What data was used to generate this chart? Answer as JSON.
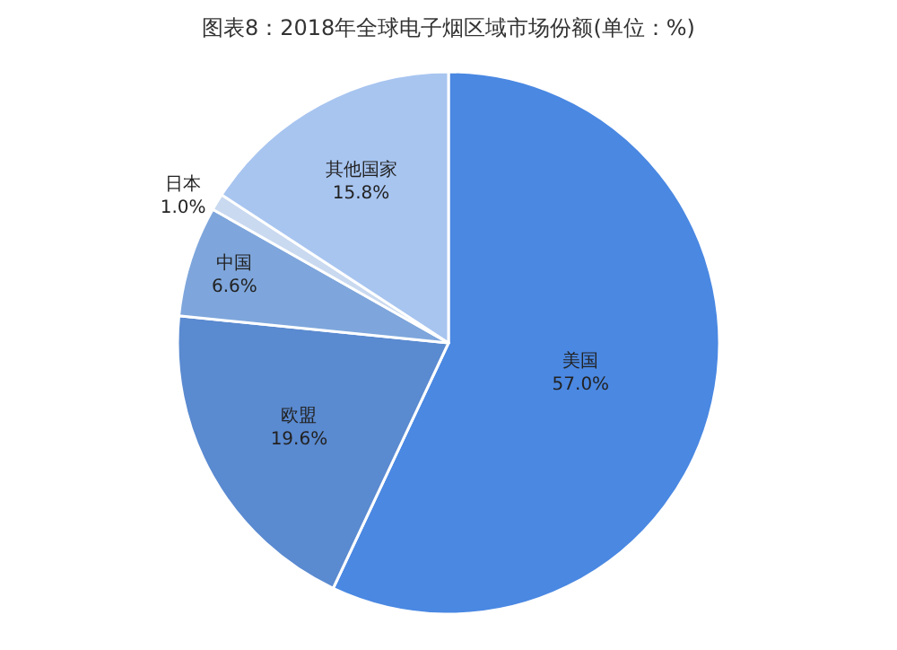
{
  "chart_data": {
    "type": "pie",
    "title": "图表8：2018年全球电子烟区域市场份额(单位：%)",
    "categories": [
      "美国",
      "欧盟",
      "中国",
      "日本",
      "其他国家"
    ],
    "values": [
      57.0,
      19.6,
      6.6,
      1.0,
      15.8
    ],
    "value_labels": [
      "57.0%",
      "19.6%",
      "6.6%",
      "1.0%",
      "15.8%"
    ],
    "colors": [
      "#4a88e2",
      "#5a8ad0",
      "#7ea6dc",
      "#c9d9f0",
      "#a8c5f0"
    ],
    "legend": false
  }
}
